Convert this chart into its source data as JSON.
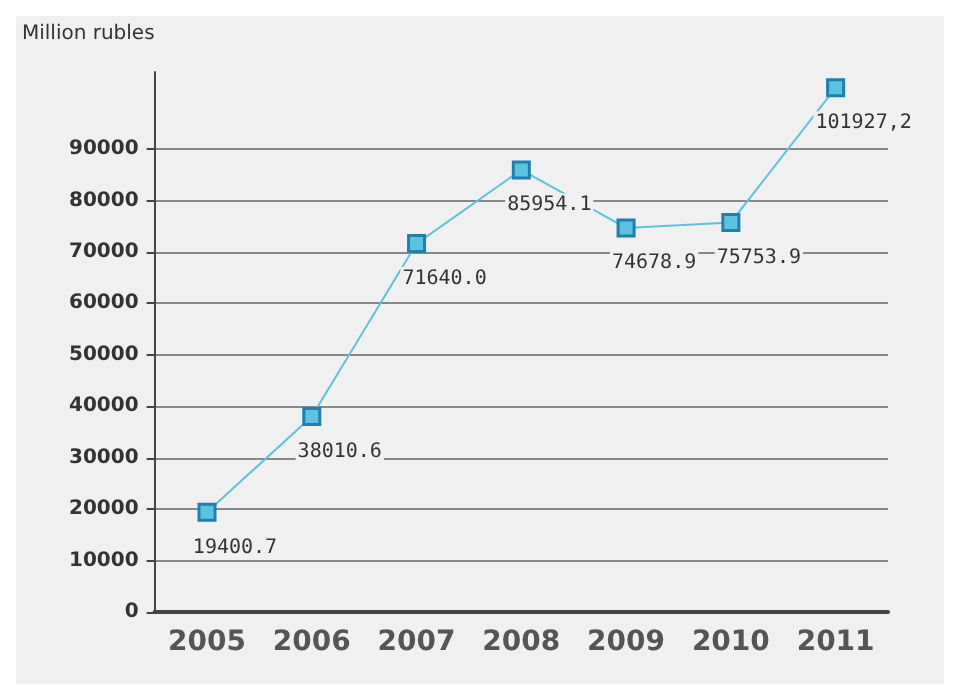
{
  "chart_data": {
    "type": "line",
    "ylabel": "Million rubles",
    "categories": [
      "2005",
      "2006",
      "2007",
      "2008",
      "2009",
      "2010",
      "2011"
    ],
    "series": [
      {
        "color": "#5bc3e0",
        "values": [
          19400.7,
          38010.6,
          71640.0,
          85954.1,
          74678.9,
          75753.9,
          101927.2
        ],
        "value_labels": [
          "19400.7",
          "38010.6",
          "71640.0",
          "85954.1",
          "74678.9",
          "75753.9",
          "101927,2"
        ]
      }
    ],
    "ylim": [
      0,
      105000
    ],
    "yticks": [
      0,
      10000,
      20000,
      30000,
      40000,
      50000,
      60000,
      70000,
      80000,
      90000
    ],
    "grid": "y",
    "marker": "square",
    "line_style": "solid"
  }
}
